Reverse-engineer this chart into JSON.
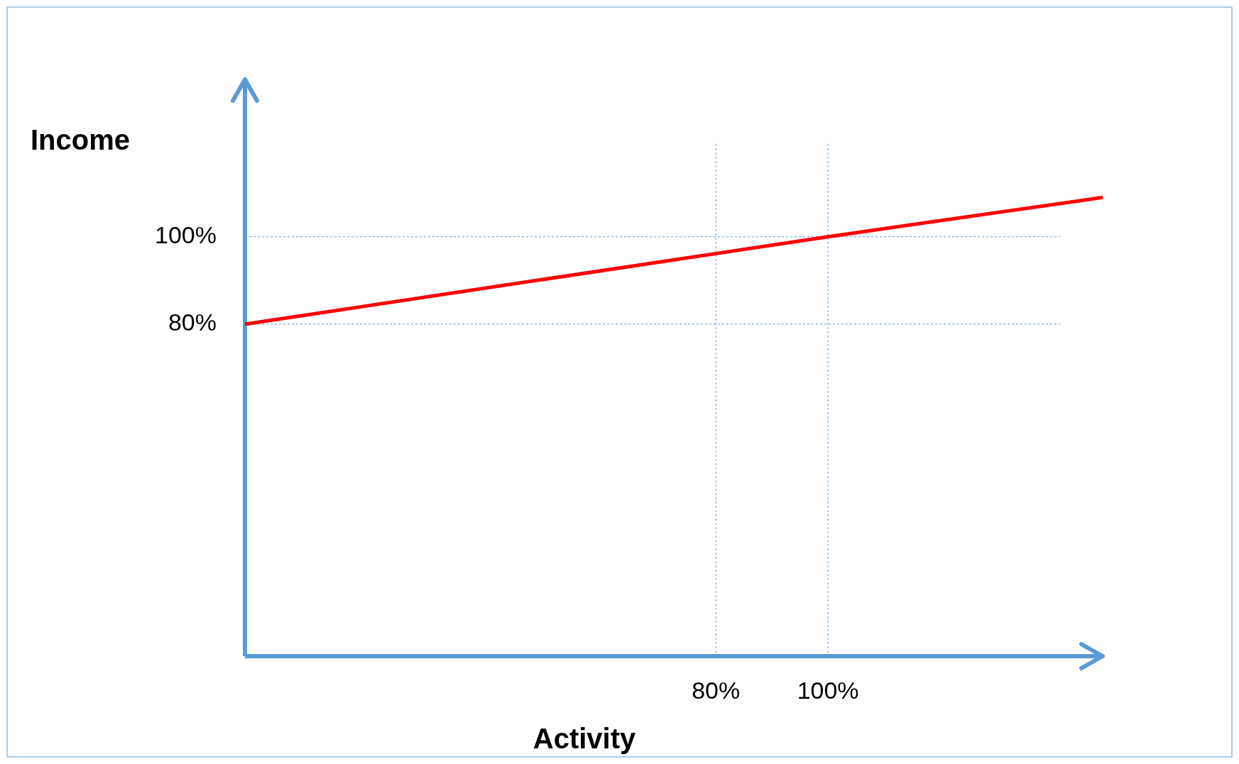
{
  "chart_data": {
    "type": "line",
    "xlabel": "Activity",
    "ylabel": "Income",
    "x": [
      -4,
      100,
      149
    ],
    "series": [
      {
        "color": "#ff0000",
        "values": [
          80,
          100,
          109
        ]
      }
    ],
    "xlim": [
      -4,
      149
    ],
    "xticks": [
      {
        "value": 80,
        "label": "80%"
      },
      {
        "value": 100,
        "label": "100%"
      }
    ],
    "ylim": [
      4,
      136
    ],
    "yticks": [
      {
        "value": 80,
        "label": "80%"
      },
      {
        "value": 100,
        "label": "100%"
      }
    ],
    "grid": true,
    "marker": "none",
    "line_style": "solid"
  }
}
